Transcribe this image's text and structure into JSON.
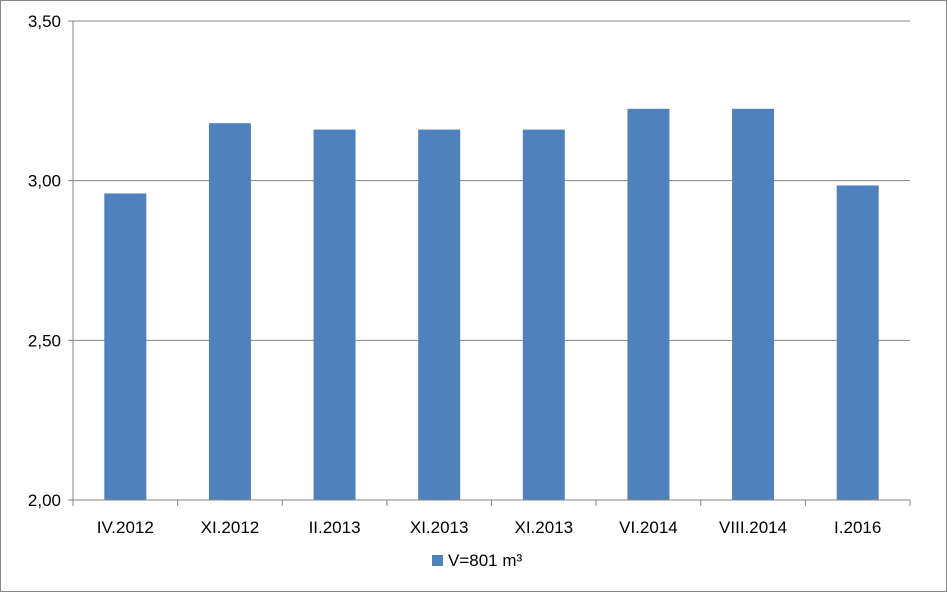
{
  "chart_data": {
    "type": "bar",
    "categories": [
      "IV.2012",
      "XI.2012",
      "II.2013",
      "XI.2013",
      "XI.2013",
      "VI.2014",
      "VIII.2014",
      "I.2016"
    ],
    "series": [
      {
        "name": "V=801 m³",
        "values": [
          2.96,
          3.18,
          3.16,
          3.16,
          3.16,
          3.225,
          3.225,
          2.985
        ],
        "color": "#4F81BD"
      }
    ],
    "ylim": [
      2.0,
      3.5
    ],
    "yticks": [
      "2,00",
      "2,50",
      "3,00",
      "3,50"
    ],
    "ytick_values": [
      2.0,
      2.5,
      3.0,
      3.5
    ],
    "grid": true,
    "legend": "bottom-center",
    "gridline_color": "#868686"
  }
}
